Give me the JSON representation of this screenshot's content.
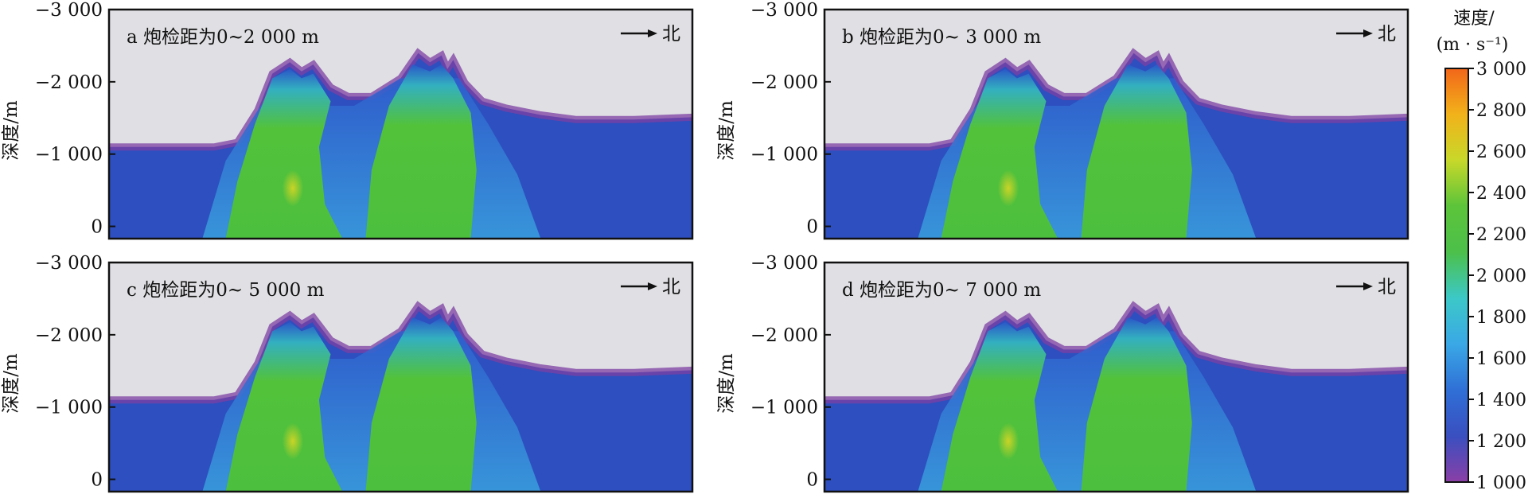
{
  "chart_data": {
    "type": "heatmap",
    "description_of_axes": "",
    "ylabel": "深度/m",
    "yticks": [
      {
        "value": -3000,
        "label": "−3 000"
      },
      {
        "value": -2000,
        "label": "−2 000"
      },
      {
        "value": -1000,
        "label": "−1 000"
      },
      {
        "value": 0,
        "label": "0"
      }
    ],
    "ylim": [
      -3000,
      170
    ],
    "north_label": "北",
    "panels": [
      {
        "id": "a",
        "title": "a 炮检距为0~2 000 m"
      },
      {
        "id": "b",
        "title": "b 炮检距为0~ 3 000 m"
      },
      {
        "id": "c",
        "title": "c 炮检距为0~ 5 000 m"
      },
      {
        "id": "d",
        "title": "d 炮检距为0~ 7 000 m"
      }
    ],
    "colorbar": {
      "title_line1": "速度/",
      "title_line2": "(m · s⁻¹)",
      "range": [
        1000,
        3000
      ],
      "ticks": [
        {
          "value": 1000,
          "label": "1 000"
        },
        {
          "value": 1200,
          "label": "1 200"
        },
        {
          "value": 1400,
          "label": "1 400"
        },
        {
          "value": 1600,
          "label": "1 600"
        },
        {
          "value": 1800,
          "label": "1 800"
        },
        {
          "value": 2000,
          "label": "2 000"
        },
        {
          "value": 2200,
          "label": "2 200"
        },
        {
          "value": 2400,
          "label": "2 400"
        },
        {
          "value": 2600,
          "label": "2 600"
        },
        {
          "value": 2800,
          "label": "2 800"
        },
        {
          "value": 3000,
          "label": "3 000"
        }
      ],
      "colors": [
        "#8a3fa6",
        "#3a4fc0",
        "#2f6fd6",
        "#3aa8e6",
        "#3cc8c8",
        "#4cc04a",
        "#5cc43a",
        "#c8d82a",
        "#f2b21a",
        "#f2661a"
      ]
    },
    "colors": {
      "air": "#e0e0e4",
      "near_surface": "#7d3fa3",
      "background": "#2d4fbf",
      "bodies": "#4cbf3e"
    }
  }
}
